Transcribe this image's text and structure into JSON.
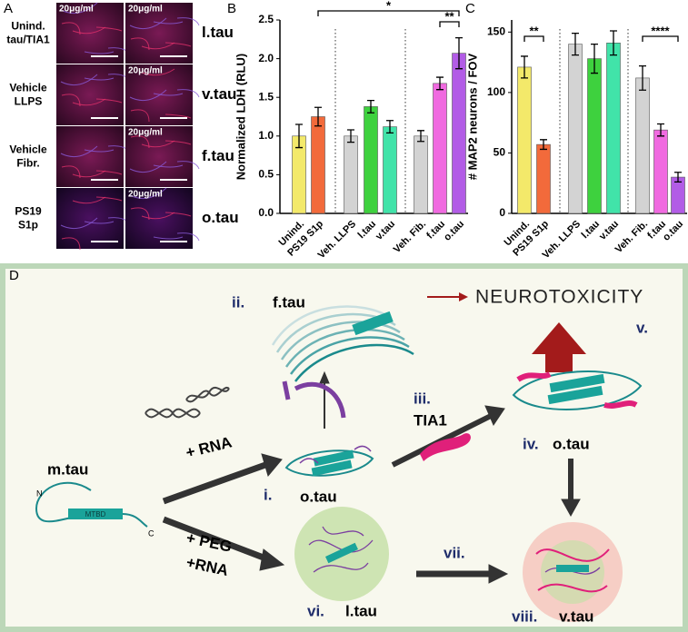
{
  "panel_a": {
    "letter": "A",
    "concentration": "20μg/ml",
    "rows": [
      {
        "lines": [
          "Unind.",
          "tau/TIA1"
        ],
        "label": "l.tau"
      },
      {
        "lines": [
          "Vehicle",
          "LLPS"
        ],
        "label": "v.tau"
      },
      {
        "lines": [
          "Vehicle",
          "Fibr."
        ],
        "label": "f.tau"
      },
      {
        "lines": [
          "PS19",
          "S1p"
        ],
        "label": "o.tau"
      }
    ]
  },
  "chart_data": [
    {
      "type": "bar",
      "panel": "B",
      "ylabel": "Normalized LDH (RLU)",
      "categories": [
        "Unind.",
        "PS19 S1p",
        "Veh. LLPS",
        "l.tau",
        "v.tau",
        "Veh. Fib.",
        "f.tau",
        "o.tau"
      ],
      "values": [
        1.0,
        1.25,
        1.0,
        1.38,
        1.12,
        1.0,
        1.68,
        2.07
      ],
      "errors": [
        0.15,
        0.12,
        0.08,
        0.08,
        0.08,
        0.07,
        0.08,
        0.2
      ],
      "colors": [
        "#f3e96a",
        "#f26a3b",
        "#d3d3d3",
        "#3ed13e",
        "#41e3a9",
        "#d3d3d3",
        "#f06ae0",
        "#b25ce6"
      ],
      "ylim": [
        0,
        2.5
      ],
      "yticks": [
        {
          "value": 0,
          "label": "0.0"
        },
        {
          "value": 0.5,
          "label": "0.5"
        },
        {
          "value": 1,
          "label": "1.0"
        },
        {
          "value": 1.5,
          "label": "1.5"
        },
        {
          "value": 2,
          "label": "2.0"
        },
        {
          "value": 2.5,
          "label": "2.5"
        }
      ],
      "annotations": [
        "*",
        "**"
      ]
    },
    {
      "type": "bar",
      "panel": "C",
      "ylabel": "# MAP2 neurons / FOV",
      "categories": [
        "Unind.",
        "PS19 S1p",
        "Veh. LLPS",
        "l.tau",
        "v.tau",
        "Veh. Fib.",
        "f.tau",
        "o.tau"
      ],
      "values": [
        121,
        57,
        140,
        128,
        141,
        112,
        69,
        30
      ],
      "errors": [
        9,
        4,
        9,
        12,
        10,
        10,
        5,
        4
      ],
      "colors": [
        "#f3e96a",
        "#f26a3b",
        "#d3d3d3",
        "#3ed13e",
        "#41e3a9",
        "#d3d3d3",
        "#f06ae0",
        "#b25ce6"
      ],
      "ylim": [
        0,
        160
      ],
      "yticks": [
        0,
        50,
        100,
        150
      ],
      "annotations": [
        "**",
        "****"
      ]
    }
  ],
  "diagram": {
    "letter": "D",
    "ii": "ii.",
    "f_tau": "f.tau",
    "neurotoxicity": "NEUROTOXICITY",
    "v": "v.",
    "iii": "iii.",
    "tia1": "TIA1",
    "plus_rna": "+ RNA",
    "i": "i.",
    "o_tau_i": "o.tau",
    "iv": "iv.",
    "o_tau_iv": "o.tau",
    "m_tau": "m.tau",
    "n": "N",
    "c": "C",
    "mtbd": "MTBD",
    "plus_peg": "+ PEG",
    "plus_rna2": "+RNA",
    "vi": "vi.",
    "l_tau": "l.tau",
    "vii": "vii.",
    "viii": "viii.",
    "v_tau": "v.tau"
  }
}
